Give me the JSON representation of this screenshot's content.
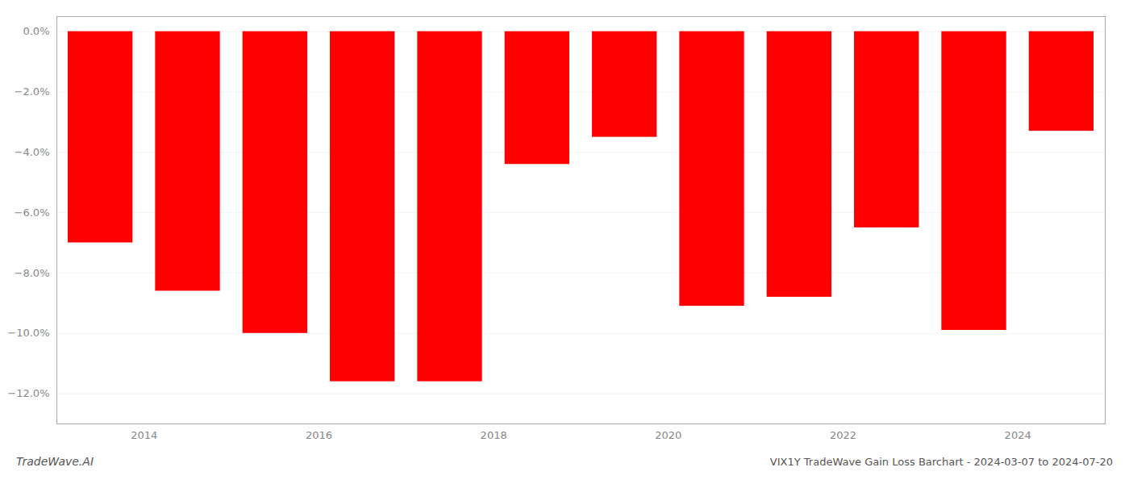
{
  "chart_data": {
    "type": "bar",
    "title": "VIX1Y TradeWave Gain Loss Barchart - 2024-03-07 to 2024-07-20",
    "annotations": [
      "TradeWave.AI"
    ],
    "x": [
      2013.5,
      2014.5,
      2015.5,
      2016.5,
      2017.5,
      2018.5,
      2019.5,
      2020.5,
      2021.5,
      2022.5,
      2023.5,
      2024.5
    ],
    "values": [
      -0.07,
      -0.086,
      -0.1,
      -0.116,
      -0.116,
      -0.044,
      -0.035,
      -0.091,
      -0.088,
      -0.065,
      -0.099,
      -0.033
    ],
    "color": "#ff0000",
    "xlim": [
      2013.0,
      2025.0
    ],
    "xticks": [
      2014,
      2016,
      2018,
      2020,
      2022,
      2024
    ],
    "ylim": [
      -0.13,
      0.005
    ],
    "yticks": [
      {
        "value": 0.0,
        "label": "0.0%"
      },
      {
        "value": -0.02,
        "label": "−2.0%"
      },
      {
        "value": -0.04,
        "label": "−4.0%"
      },
      {
        "value": -0.06,
        "label": "−6.0%"
      },
      {
        "value": -0.08,
        "label": "−8.0%"
      },
      {
        "value": -0.1,
        "label": "−10.0%"
      },
      {
        "value": -0.12,
        "label": "−12.0%"
      }
    ],
    "grid": true
  }
}
